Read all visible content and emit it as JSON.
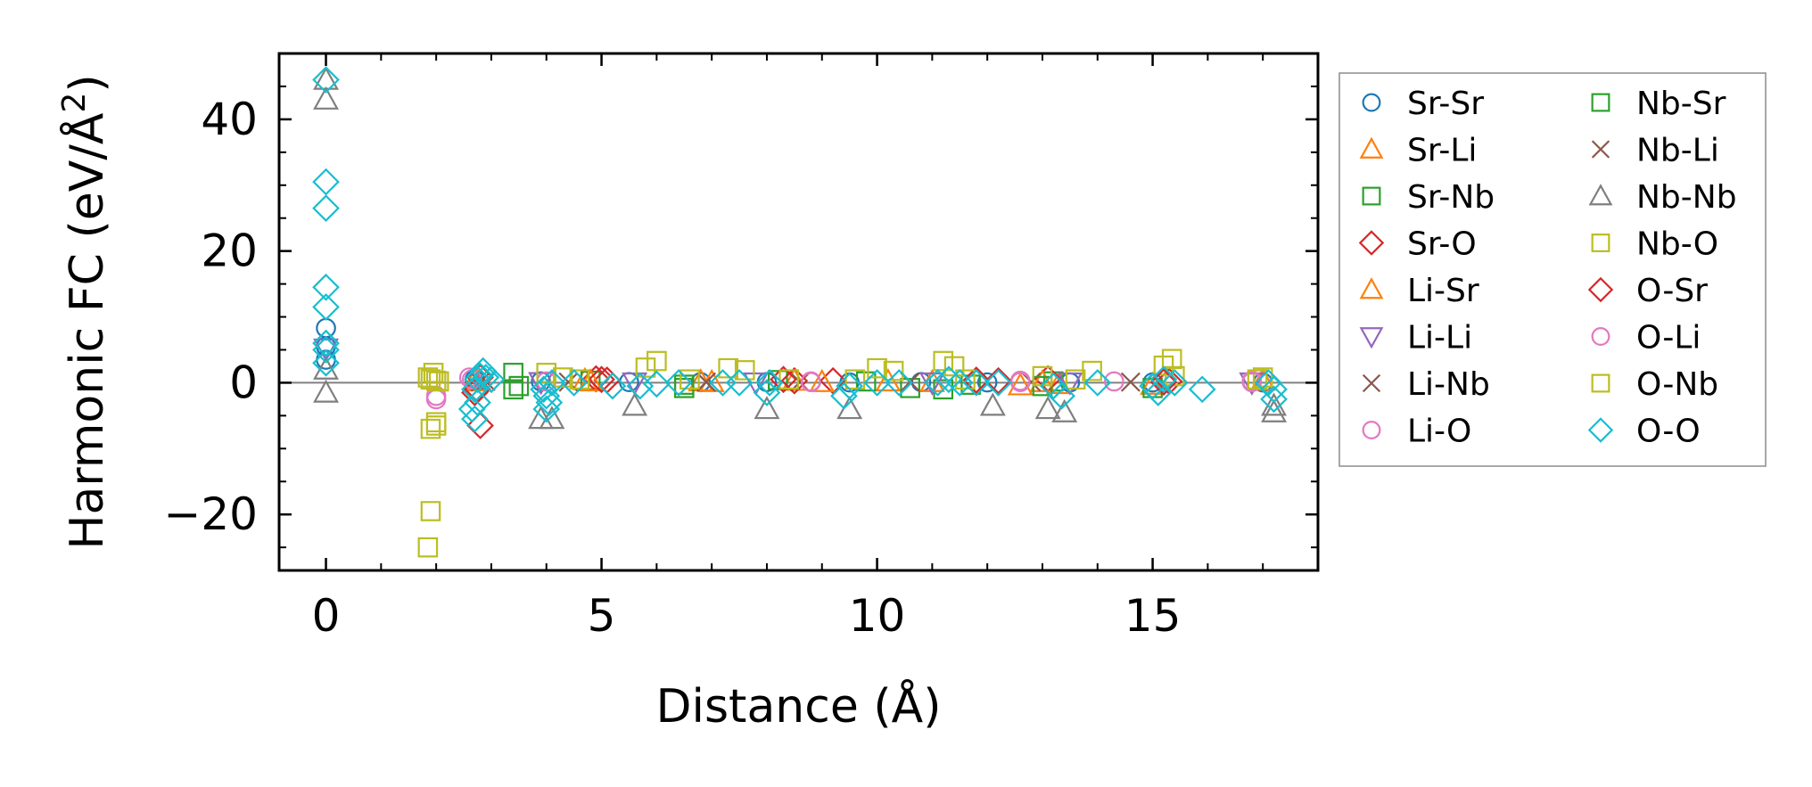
{
  "chart_data": {
    "type": "scatter",
    "title": "",
    "xlabel": "Distance (Å)",
    "ylabel": "Harmonic FC (eV/Å²)",
    "ylabel_parts": {
      "main": "Harmonic FC (eV/Å",
      "sup": "2",
      "close": ")"
    },
    "xlim": [
      -0.85,
      18.0
    ],
    "ylim": [
      -28.5,
      50.0
    ],
    "xticks": [
      0,
      5,
      10,
      15
    ],
    "xtick_labels": [
      "0",
      "5",
      "10",
      "15"
    ],
    "yticks": [
      -20,
      0,
      20,
      40
    ],
    "ytick_labels": [
      "−20",
      "0",
      "20",
      "40"
    ],
    "zero_line": true,
    "legend_position": "outside-right",
    "series": [
      {
        "name": "Sr-Sr",
        "marker": "circle",
        "color": "#1f77b4",
        "points": [
          [
            0,
            8.3
          ],
          [
            0,
            5.5
          ],
          [
            0,
            3.5
          ],
          [
            2.7,
            0.5
          ],
          [
            3.9,
            0.2
          ],
          [
            5.5,
            0.1
          ],
          [
            6.8,
            0.1
          ],
          [
            8.0,
            0.1
          ],
          [
            9.5,
            0.05
          ],
          [
            10.8,
            0.1
          ],
          [
            12.0,
            0.05
          ],
          [
            13.5,
            0.05
          ],
          [
            15.0,
            0.05
          ],
          [
            17.0,
            0.05
          ]
        ]
      },
      {
        "name": "Sr-Li",
        "marker": "triangle-up",
        "color": "#ff7f0e",
        "points": [
          [
            2.7,
            0.3
          ],
          [
            4.7,
            0.4
          ],
          [
            6.8,
            0.2
          ],
          [
            8.5,
            0.3
          ],
          [
            10.2,
            0.2
          ],
          [
            12.6,
            -0.4
          ],
          [
            13.3,
            -0.2
          ],
          [
            15.0,
            -0.3
          ],
          [
            17.0,
            0.3
          ]
        ]
      },
      {
        "name": "Sr-Nb",
        "marker": "square",
        "color": "#2ca02c",
        "points": [
          [
            3.4,
            1.5
          ],
          [
            3.4,
            -1.0
          ],
          [
            4.8,
            0.3
          ],
          [
            6.5,
            -0.8
          ],
          [
            8.2,
            0.4
          ],
          [
            9.8,
            0.2
          ],
          [
            11.2,
            -1.0
          ],
          [
            11.7,
            -0.3
          ],
          [
            13.2,
            0.2
          ],
          [
            15.0,
            -0.8
          ]
        ]
      },
      {
        "name": "Sr-O",
        "marker": "diamond",
        "color": "#d62728",
        "points": [
          [
            2.8,
            -6.5
          ],
          [
            2.7,
            -1.5
          ],
          [
            2.8,
            0.8
          ],
          [
            4.9,
            0.6
          ],
          [
            5.1,
            0.4
          ],
          [
            8.3,
            0.5
          ],
          [
            9.2,
            0.3
          ],
          [
            11.8,
            0.4
          ],
          [
            13.1,
            0.6
          ],
          [
            15.3,
            0.2
          ]
        ]
      },
      {
        "name": "Li-Sr",
        "marker": "triangle-up",
        "color": "#ff7f0e",
        "points": [
          [
            2.75,
            0.2
          ],
          [
            4.8,
            0.2
          ],
          [
            7.0,
            0.1
          ],
          [
            9.0,
            0.1
          ],
          [
            11.0,
            0.1
          ],
          [
            13.0,
            0.1
          ]
        ]
      },
      {
        "name": "Li-Li",
        "marker": "triangle-down",
        "color": "#9467bd",
        "points": [
          [
            0,
            5.2
          ],
          [
            3.9,
            0.1
          ],
          [
            5.6,
            0.05
          ],
          [
            7.8,
            0.05
          ],
          [
            11.0,
            0.05
          ],
          [
            13.5,
            0.05
          ],
          [
            16.8,
            0.05
          ]
        ]
      },
      {
        "name": "Li-Nb",
        "marker": "x",
        "color": "#8c564b",
        "points": [
          [
            2.8,
            0.1
          ],
          [
            4.4,
            0.1
          ],
          [
            6.9,
            0.1
          ],
          [
            8.6,
            0.1
          ],
          [
            10.6,
            0.1
          ],
          [
            12.8,
            0.1
          ],
          [
            14.6,
            0.1
          ]
        ]
      },
      {
        "name": "Li-O",
        "marker": "circle",
        "color": "#e377c2",
        "points": [
          [
            2.0,
            -2.0
          ],
          [
            2.6,
            0.8
          ],
          [
            4.0,
            0.2
          ],
          [
            8.8,
            0.2
          ],
          [
            12.6,
            0.3
          ],
          [
            14.3,
            0.2
          ],
          [
            16.8,
            0.3
          ]
        ]
      },
      {
        "name": "Nb-Sr",
        "marker": "square",
        "color": "#2ca02c",
        "points": [
          [
            3.5,
            -0.5
          ],
          [
            6.5,
            -0.3
          ],
          [
            10.6,
            -0.8
          ],
          [
            13.0,
            -0.5
          ]
        ]
      },
      {
        "name": "Nb-Li",
        "marker": "x",
        "color": "#8c564b",
        "points": [
          [
            2.9,
            0.2
          ],
          [
            6.9,
            0.1
          ],
          [
            10.6,
            0.1
          ]
        ]
      },
      {
        "name": "Nb-Nb",
        "marker": "triangle-up",
        "color": "#7f7f7f",
        "points": [
          [
            0,
            46.0
          ],
          [
            0,
            43.0
          ],
          [
            0,
            2.0
          ],
          [
            0,
            -1.5
          ],
          [
            3.9,
            -5.5
          ],
          [
            4.1,
            -5.5
          ],
          [
            5.6,
            -3.5
          ],
          [
            8.0,
            -4.0
          ],
          [
            9.5,
            -4.0
          ],
          [
            12.1,
            -3.5
          ],
          [
            13.1,
            -4.0
          ],
          [
            13.4,
            -4.5
          ],
          [
            17.2,
            -4.5
          ],
          [
            17.2,
            -3.5
          ]
        ]
      },
      {
        "name": "Nb-O",
        "marker": "square",
        "color": "#bcbd22",
        "points": [
          [
            1.85,
            -25.0
          ],
          [
            1.9,
            -19.5
          ],
          [
            1.9,
            -7.0
          ],
          [
            2.0,
            -6.5
          ],
          [
            2.0,
            -6.0
          ],
          [
            1.85,
            0.8
          ],
          [
            1.95,
            1.5
          ],
          [
            2.0,
            0.3
          ],
          [
            4.0,
            1.5
          ],
          [
            4.3,
            0.8
          ],
          [
            5.8,
            2.3
          ],
          [
            6.0,
            3.3
          ],
          [
            7.3,
            2.2
          ],
          [
            7.6,
            1.9
          ],
          [
            10.0,
            2.2
          ],
          [
            10.3,
            1.8
          ],
          [
            11.2,
            3.3
          ],
          [
            11.4,
            2.5
          ],
          [
            13.0,
            1.0
          ],
          [
            13.9,
            1.8
          ],
          [
            15.2,
            2.6
          ],
          [
            15.35,
            3.6
          ],
          [
            15.4,
            1.0
          ],
          [
            17.0,
            0.8
          ]
        ]
      },
      {
        "name": "O-Sr",
        "marker": "diamond",
        "color": "#d62728",
        "points": [
          [
            2.75,
            -1.0
          ],
          [
            5.0,
            0.5
          ],
          [
            8.5,
            0.3
          ],
          [
            12.2,
            0.3
          ],
          [
            15.2,
            0.1
          ]
        ]
      },
      {
        "name": "O-Li",
        "marker": "circle",
        "color": "#e377c2",
        "points": [
          [
            2.0,
            -2.5
          ],
          [
            2.65,
            0.5
          ],
          [
            8.8,
            0.1
          ],
          [
            12.6,
            0.1
          ],
          [
            16.8,
            0.1
          ]
        ]
      },
      {
        "name": "O-Nb",
        "marker": "square",
        "color": "#bcbd22",
        "points": [
          [
            1.9,
            0.5
          ],
          [
            2.05,
            0.2
          ],
          [
            4.6,
            0.5
          ],
          [
            6.6,
            0.5
          ],
          [
            8.4,
            0.5
          ],
          [
            9.6,
            0.5
          ],
          [
            11.6,
            0.5
          ],
          [
            13.6,
            0.5
          ],
          [
            16.9,
            0.5
          ]
        ]
      },
      {
        "name": "O-O",
        "marker": "diamond",
        "color": "#17becf",
        "points": [
          [
            0,
            46.0
          ],
          [
            0,
            30.5
          ],
          [
            0,
            26.5
          ],
          [
            0,
            14.5
          ],
          [
            0,
            11.5
          ],
          [
            0,
            6.0
          ],
          [
            0,
            5.0
          ],
          [
            0,
            3.0
          ],
          [
            2.65,
            -4.0
          ],
          [
            2.7,
            -5.5
          ],
          [
            2.75,
            -3.0
          ],
          [
            2.7,
            -1.0
          ],
          [
            2.75,
            0.5
          ],
          [
            2.8,
            1.0
          ],
          [
            2.85,
            1.8
          ],
          [
            2.9,
            0.8
          ],
          [
            3.0,
            0.5
          ],
          [
            3.95,
            -1.0
          ],
          [
            4.0,
            -2.0
          ],
          [
            4.05,
            -3.0
          ],
          [
            4.0,
            -4.0
          ],
          [
            4.1,
            0.0
          ],
          [
            4.5,
            0.0
          ],
          [
            5.2,
            -0.5
          ],
          [
            5.7,
            -0.5
          ],
          [
            6.0,
            -0.2
          ],
          [
            6.4,
            0.0
          ],
          [
            7.2,
            0.0
          ],
          [
            7.5,
            0.0
          ],
          [
            8.0,
            -1.5
          ],
          [
            8.05,
            0.0
          ],
          [
            9.4,
            -2.0
          ],
          [
            9.5,
            -0.5
          ],
          [
            10.0,
            0.0
          ],
          [
            10.4,
            0.0
          ],
          [
            11.1,
            0.0
          ],
          [
            11.3,
            0.5
          ],
          [
            11.5,
            0.0
          ],
          [
            11.8,
            0.0
          ],
          [
            12.2,
            0.0
          ],
          [
            13.2,
            -0.5
          ],
          [
            13.35,
            -2.0
          ],
          [
            14.0,
            0.0
          ],
          [
            15.0,
            -0.5
          ],
          [
            15.1,
            -1.5
          ],
          [
            15.2,
            0.5
          ],
          [
            15.4,
            0.0
          ],
          [
            15.9,
            -1.0
          ],
          [
            17.1,
            0.0
          ],
          [
            17.2,
            -1.0
          ],
          [
            17.2,
            -2.5
          ]
        ]
      }
    ]
  }
}
